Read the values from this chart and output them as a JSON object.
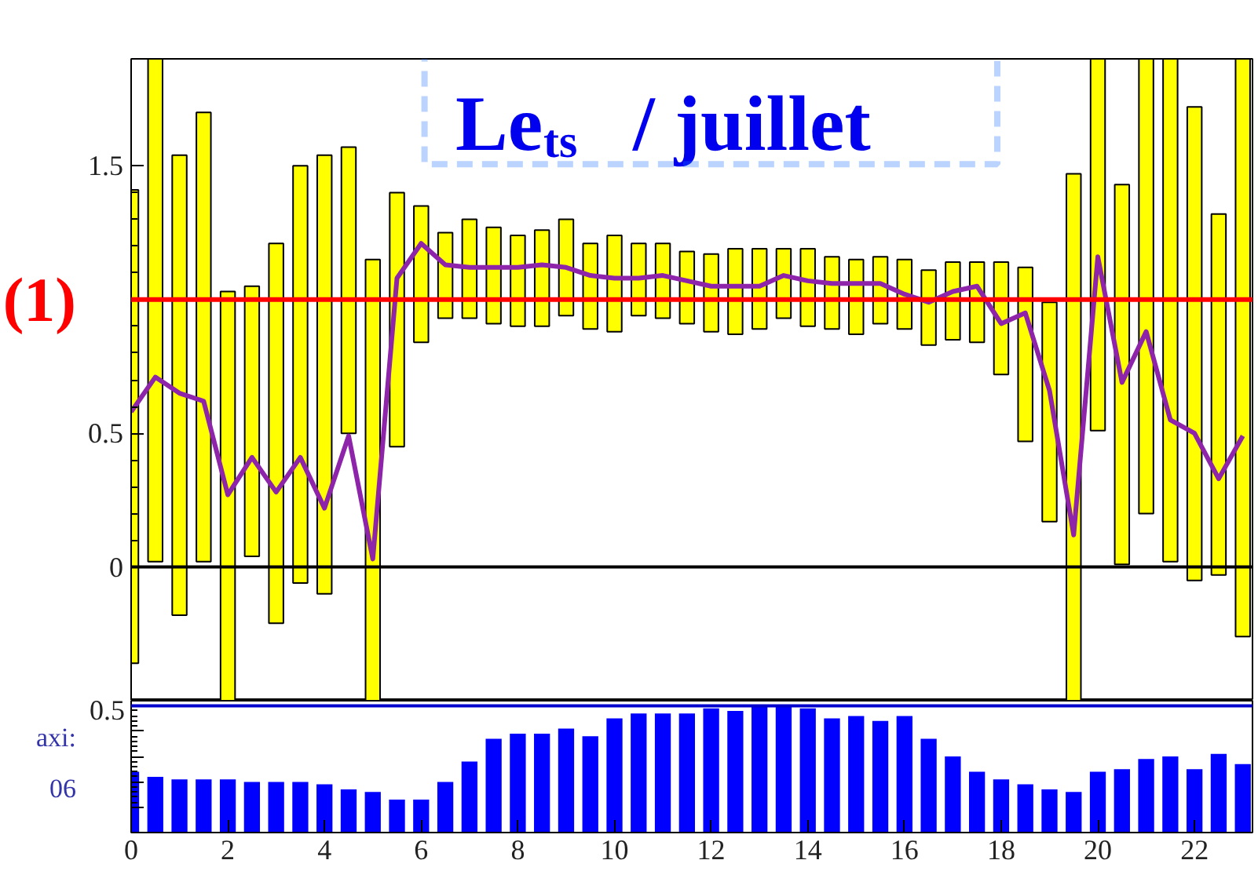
{
  "chart_data": [
    {
      "type": "bar",
      "title": "Le$_{ts}$ / juillet",
      "x": [
        0,
        0.5,
        1,
        1.5,
        2,
        2.5,
        3,
        3.5,
        4,
        4.5,
        5,
        5.5,
        6,
        6.5,
        7,
        7.5,
        8,
        8.5,
        9,
        9.5,
        10,
        10.5,
        11,
        11.5,
        12,
        12.5,
        13,
        13.5,
        14,
        14.5,
        15,
        15.5,
        16,
        16.5,
        17,
        17.5,
        18,
        18.5,
        19,
        19.5,
        20,
        20.5,
        21,
        21.5,
        22,
        22.5,
        23
      ],
      "series": [
        {
          "type": "bar",
          "color": "#ffff00",
          "base": [
            -0.36,
            0.02,
            -0.18,
            0.02,
            -0.5,
            0.04,
            -0.21,
            -0.06,
            -0.1,
            0.5,
            -0.5,
            0.45,
            0.84,
            0.93,
            0.93,
            0.91,
            0.9,
            0.9,
            0.94,
            0.89,
            0.88,
            0.94,
            0.93,
            0.91,
            0.88,
            0.87,
            0.89,
            0.93,
            0.9,
            0.89,
            0.87,
            0.91,
            0.89,
            0.83,
            0.85,
            0.84,
            0.72,
            0.47,
            0.17,
            -0.5,
            0.51,
            0.01,
            0.2,
            0.02,
            -0.05,
            -0.03,
            -0.26
          ],
          "values": [
            1.77,
            1.88,
            1.72,
            1.68,
            1.53,
            1.01,
            1.42,
            1.56,
            1.64,
            1.07,
            1.65,
            0.95,
            0.51,
            0.32,
            0.37,
            0.36,
            0.34,
            0.36,
            0.36,
            0.32,
            0.36,
            0.27,
            0.28,
            0.27,
            0.29,
            0.32,
            0.3,
            0.26,
            0.29,
            0.27,
            0.28,
            0.25,
            0.26,
            0.28,
            0.29,
            0.3,
            0.42,
            0.65,
            0.82,
            1.97,
            1.39,
            1.42,
            1.7,
            1.88,
            1.77,
            1.35,
            2.16
          ]
        },
        {
          "type": "line",
          "color": "#8e24aa",
          "values": [
            0.58,
            0.71,
            0.65,
            0.62,
            0.27,
            0.41,
            0.28,
            0.41,
            0.22,
            0.49,
            0.03,
            1.08,
            1.21,
            1.13,
            1.12,
            1.12,
            1.12,
            1.13,
            1.12,
            1.09,
            1.08,
            1.08,
            1.09,
            1.07,
            1.05,
            1.05,
            1.05,
            1.09,
            1.07,
            1.06,
            1.06,
            1.06,
            1.02,
            0.99,
            1.03,
            1.05,
            0.91,
            0.95,
            0.66,
            0.12,
            1.16,
            0.69,
            0.88,
            0.55,
            0.5,
            0.33,
            0.49
          ]
        }
      ],
      "xlim": [
        0,
        23.2
      ],
      "ylim": [
        -0.5,
        1.9
      ],
      "yticks": [
        0,
        0.5,
        {
          "value": 1,
          "label": null
        },
        1.5
      ],
      "tick_labels": "y",
      "ref_lines": [
        {
          "axis": "y",
          "value": 1,
          "label": "(1)",
          "color": "#ff0000"
        },
        {
          "axis": "y",
          "value": 0,
          "color": "#000000"
        }
      ]
    },
    {
      "type": "bar",
      "x": [
        0,
        0.5,
        1,
        1.5,
        2,
        2.5,
        3,
        3.5,
        4,
        4.5,
        5,
        5.5,
        6,
        6.5,
        7,
        7.5,
        8,
        8.5,
        9,
        9.5,
        10,
        10.5,
        11,
        11.5,
        12,
        12.5,
        13,
        13.5,
        14,
        14.5,
        15,
        15.5,
        16,
        16.5,
        17,
        17.5,
        18,
        18.5,
        19,
        19.5,
        20,
        20.5,
        21,
        21.5,
        22,
        22.5,
        23
      ],
      "values": [
        0.24,
        0.22,
        0.21,
        0.21,
        0.21,
        0.2,
        0.2,
        0.2,
        0.19,
        0.17,
        0.16,
        0.13,
        0.13,
        0.2,
        0.28,
        0.37,
        0.39,
        0.39,
        0.41,
        0.38,
        0.45,
        0.47,
        0.47,
        0.47,
        0.49,
        0.48,
        0.5,
        0.5,
        0.49,
        0.45,
        0.46,
        0.44,
        0.46,
        0.37,
        0.3,
        0.24,
        0.21,
        0.19,
        0.17,
        0.16,
        0.24,
        0.25,
        0.29,
        0.3,
        0.25,
        0.31,
        0.27
      ],
      "color": "#0000ff",
      "xlim": [
        0,
        23.2
      ],
      "ylim": [
        0,
        0.52
      ],
      "xticks": [
        0,
        2,
        4,
        6,
        8,
        10,
        12,
        14,
        16,
        18,
        20,
        22
      ],
      "yticks": [
        {
          "value": 0.1,
          "label": null
        },
        {
          "value": 0.2,
          "label": null
        },
        {
          "value": 0.3,
          "label": null
        },
        {
          "value": 0.4,
          "label": null
        },
        0.5
      ],
      "ref_lines": [
        {
          "axis": "y",
          "value": 0.5,
          "color": "#0000cc"
        }
      ],
      "annotations": [
        "axi:",
        "06"
      ]
    }
  ]
}
